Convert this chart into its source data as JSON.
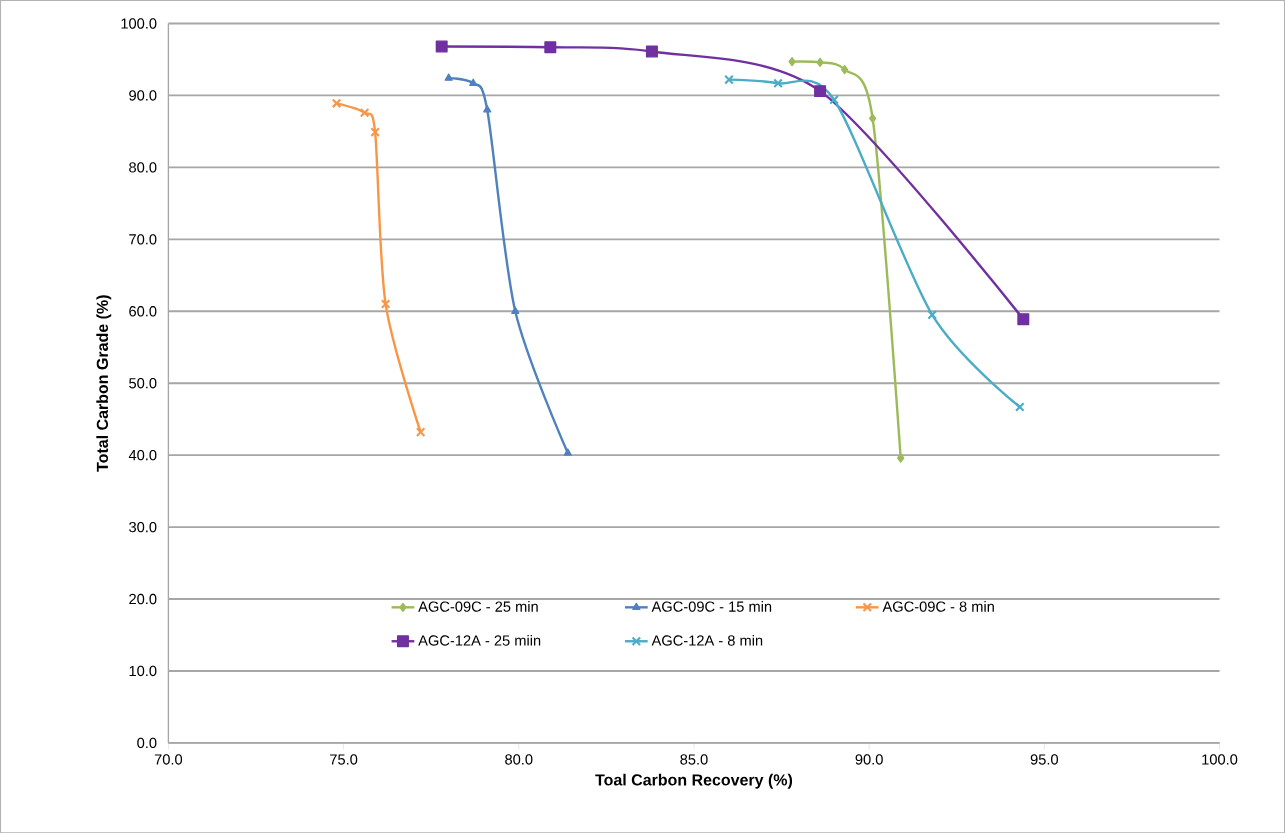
{
  "chart_data": {
    "type": "line",
    "xlabel": "Toal Carbon Recovery (%)",
    "ylabel": "Total Carbon Grade (%)",
    "xlim": [
      70,
      100
    ],
    "ylim": [
      0,
      100
    ],
    "xticks": [
      {
        "value": 70,
        "label": "70.0"
      },
      {
        "value": 75,
        "label": "75.0"
      },
      {
        "value": 80,
        "label": "80.0"
      },
      {
        "value": 85,
        "label": "85.0"
      },
      {
        "value": 90,
        "label": "90.0"
      },
      {
        "value": 95,
        "label": "95.0"
      },
      {
        "value": 100,
        "label": "100.0"
      }
    ],
    "yticks": [
      {
        "value": 0,
        "label": "0.0"
      },
      {
        "value": 10,
        "label": "10.0"
      },
      {
        "value": 20,
        "label": "20.0"
      },
      {
        "value": 30,
        "label": "30.0"
      },
      {
        "value": 40,
        "label": "40.0"
      },
      {
        "value": 50,
        "label": "50.0"
      },
      {
        "value": 60,
        "label": "60.0"
      },
      {
        "value": 70,
        "label": "70.0"
      },
      {
        "value": 80,
        "label": "80.0"
      },
      {
        "value": 90,
        "label": "90.0"
      },
      {
        "value": 100,
        "label": "100.0"
      }
    ],
    "grid": "y",
    "legend": "bottom",
    "line_style": "solid",
    "series": [
      {
        "name": "AGC-09C - 25 min",
        "color": "#9bbb59",
        "marker": "diamond",
        "x": [
          87.8,
          88.6,
          89.3,
          90.1,
          90.9
        ],
        "values": [
          94.7,
          94.6,
          93.6,
          86.8,
          39.6
        ]
      },
      {
        "name": "AGC-09C - 15 min",
        "color": "#4f81bd",
        "marker": "triangle",
        "x": [
          78.0,
          78.7,
          79.1,
          79.9,
          81.4
        ],
        "values": [
          92.4,
          91.7,
          88.0,
          60.0,
          40.3
        ]
      },
      {
        "name": "AGC-09C - 8 min",
        "color": "#f79646",
        "marker": "cross",
        "x": [
          74.8,
          75.6,
          75.9,
          76.2,
          77.2
        ],
        "values": [
          88.9,
          87.6,
          84.9,
          61.0,
          43.2
        ]
      },
      {
        "name": "AGC-12A - 25 miin",
        "color": "#7030a0",
        "marker": "square",
        "x": [
          77.8,
          80.9,
          83.8,
          88.6,
          94.4
        ],
        "values": [
          96.8,
          96.7,
          96.1,
          90.6,
          58.9
        ]
      },
      {
        "name": "AGC-12A - 8 min",
        "color": "#4bacc6",
        "marker": "cross",
        "x": [
          86.0,
          87.4,
          89.0,
          91.8,
          94.3
        ],
        "values": [
          92.2,
          91.7,
          89.4,
          59.5,
          46.7
        ]
      }
    ]
  }
}
